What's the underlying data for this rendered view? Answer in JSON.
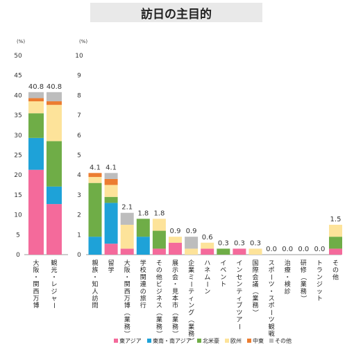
{
  "page_title": "訪日の主目的",
  "chart_data": [
    {
      "type": "bar",
      "stacked": true,
      "unit": "(%)",
      "ylim": [
        0,
        50
      ],
      "yticks": [
        0,
        5,
        10,
        15,
        20,
        25,
        30,
        35,
        40,
        45,
        50
      ],
      "categories": [
        "大阪・関西万博",
        "観光・レジャー"
      ],
      "totals": [
        "40.8",
        "40.8"
      ],
      "series": [
        {
          "name": "東アジア",
          "values": [
            21.3,
            12.7
          ]
        },
        {
          "name": "東南・南アジア",
          "values": [
            8.0,
            4.4
          ]
        },
        {
          "name": "北米豪",
          "values": [
            6.2,
            11.4
          ]
        },
        {
          "name": "欧州",
          "values": [
            3.0,
            9.1
          ]
        },
        {
          "name": "中東",
          "values": [
            0.8,
            0.9
          ]
        },
        {
          "name": "その他",
          "values": [
            1.5,
            2.3
          ]
        }
      ]
    },
    {
      "type": "bar",
      "stacked": true,
      "unit": "(%)",
      "ylim": [
        0,
        10
      ],
      "yticks": [
        0,
        1,
        2,
        3,
        4,
        5,
        6,
        7,
        8,
        9,
        10
      ],
      "categories": [
        "親族・知人訪問",
        "留学",
        "大阪・関西万博（業務）",
        "学校関連の旅行",
        "その他ビジネス（業務）",
        "展示会・見本市（業務）",
        "企業ミーティング（業務）",
        "ハネムーン",
        "イベント",
        "インセンティブツアー",
        "国際会議（業務）",
        "スポーツ・スポーツ観戦",
        "治療・検診",
        "研修（業務）",
        "トランジット",
        "その他"
      ],
      "totals": [
        "4.1",
        "4.1",
        "2.1",
        "1.8",
        "1.8",
        "0.9",
        "0.9",
        "0.6",
        "0.3",
        "0.3",
        "0.3",
        "0.0",
        "0.0",
        "0.0",
        "0.0",
        "1.5"
      ],
      "series": [
        {
          "name": "東アジア",
          "values": [
            0,
            0.55,
            0.3,
            0,
            0.3,
            0.6,
            0,
            0.3,
            0,
            0.3,
            0,
            0,
            0,
            0,
            0,
            0.3
          ]
        },
        {
          "name": "東南・南アジア",
          "values": [
            0.9,
            2.05,
            0,
            0.9,
            0,
            0,
            0,
            0,
            0,
            0,
            0,
            0,
            0,
            0,
            0,
            0
          ]
        },
        {
          "name": "北米豪",
          "values": [
            2.7,
            0.3,
            0,
            0.9,
            0.9,
            0,
            0,
            0,
            0.3,
            0,
            0,
            0,
            0,
            0,
            0,
            0.6
          ]
        },
        {
          "name": "欧州",
          "values": [
            0.3,
            0.6,
            1.2,
            0,
            0.6,
            0.3,
            0.3,
            0.3,
            0,
            0,
            0.3,
            0,
            0,
            0,
            0,
            0.6
          ]
        },
        {
          "name": "中東",
          "values": [
            0.2,
            0.3,
            0,
            0,
            0,
            0,
            0,
            0,
            0,
            0,
            0,
            0,
            0,
            0,
            0,
            0
          ]
        },
        {
          "name": "その他",
          "values": [
            0,
            0.3,
            0.6,
            0,
            0,
            0,
            0.6,
            0,
            0,
            0,
            0,
            0,
            0,
            0,
            0,
            0
          ]
        }
      ]
    }
  ],
  "legend": {
    "position": "bottom",
    "items": [
      {
        "name": "東アジア",
        "color": "#f46a9b"
      },
      {
        "name": "東南・南アジア",
        "color": "#1ea2d8"
      },
      {
        "name": "北米豪",
        "color": "#6fad47"
      },
      {
        "name": "欧州",
        "color": "#fde39a"
      },
      {
        "name": "中東",
        "color": "#ec7d31"
      },
      {
        "name": "その他",
        "color": "#bdbdbd"
      }
    ]
  }
}
